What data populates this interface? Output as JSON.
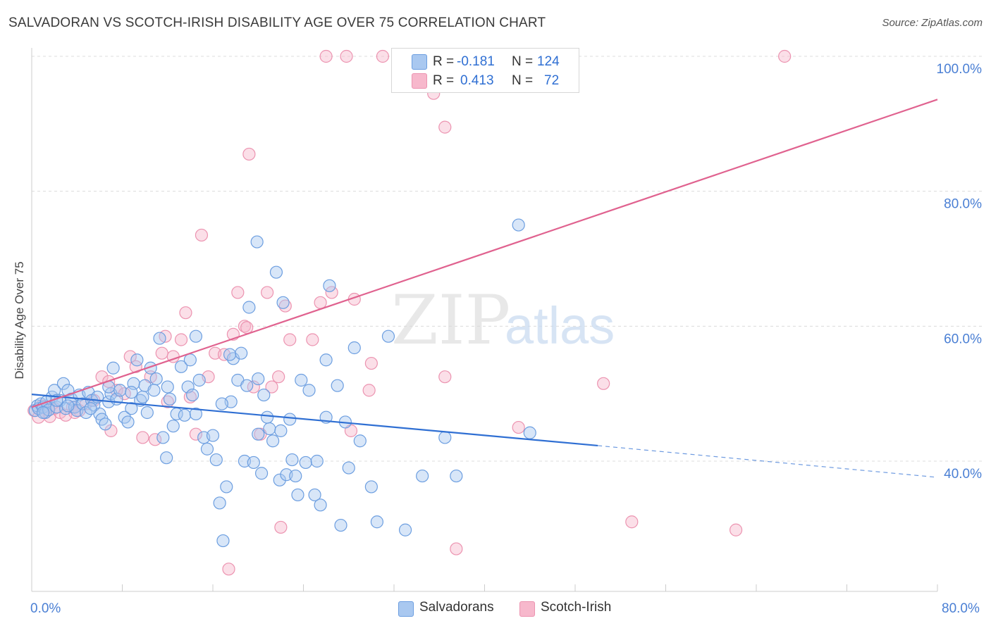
{
  "title": "SALVADORAN VS SCOTCH-IRISH DISABILITY AGE OVER 75 CORRELATION CHART",
  "source": "Source: ZipAtlas.com",
  "watermark": {
    "zip": "ZIP",
    "atlas": "atlas"
  },
  "colors": {
    "salvadoran_fill": "#a9c8f0",
    "salvadoran_stroke": "#6c9ee0",
    "salvadoran_line": "#2f6fd3",
    "scotch_fill": "#f7b8cc",
    "scotch_stroke": "#ec93b0",
    "scotch_line": "#e0628f",
    "axis_text": "#4a7fd4",
    "grid": "#dcdcdc"
  },
  "legend": {
    "rows": [
      {
        "r_label": "R =",
        "r_value": "-0.181",
        "n_label": "N =",
        "n_value": "124"
      },
      {
        "r_label": "R =",
        "r_value": "0.413",
        "n_label": "N =",
        "n_value": "72"
      }
    ]
  },
  "bottom_legend": {
    "salvadoran": "Salvadorans",
    "scotch": "Scotch-Irish"
  },
  "chart_data": {
    "type": "scatter",
    "title": "SALVADORAN VS SCOTCH-IRISH DISABILITY AGE OVER 75 CORRELATION CHART",
    "ylabel": "Disability Age Over 75",
    "xlabel": "",
    "xlim": [
      0,
      80
    ],
    "ylim": [
      22,
      103
    ],
    "x_tick_labels": [
      "0.0%",
      "80.0%"
    ],
    "y_tick_values": [
      40,
      60,
      80,
      100
    ],
    "y_tick_labels": [
      "40.0%",
      "60.0%",
      "80.0%",
      "100.0%"
    ],
    "grid": true,
    "legend_position": "top-center",
    "series": [
      {
        "name": "Salvadorans",
        "points": [
          [
            0.3,
            47.5
          ],
          [
            0.5,
            48.2
          ],
          [
            0.6,
            47.8
          ],
          [
            0.8,
            48.5
          ],
          [
            1.0,
            48.0
          ],
          [
            1.2,
            47.2
          ],
          [
            1.3,
            48.8
          ],
          [
            1.5,
            47.6
          ],
          [
            1.8,
            49.5
          ],
          [
            2.0,
            50.5
          ],
          [
            2.2,
            48.0
          ],
          [
            2.5,
            49.0
          ],
          [
            2.8,
            51.5
          ],
          [
            3.0,
            47.8
          ],
          [
            3.2,
            50.5
          ],
          [
            3.5,
            49.2
          ],
          [
            3.8,
            48.0
          ],
          [
            4.0,
            47.5
          ],
          [
            4.2,
            49.8
          ],
          [
            4.5,
            48.5
          ],
          [
            4.8,
            47.2
          ],
          [
            5.0,
            50.2
          ],
          [
            5.3,
            49.0
          ],
          [
            5.5,
            48.3
          ],
          [
            5.8,
            49.5
          ],
          [
            6.0,
            47.0
          ],
          [
            6.2,
            46.2
          ],
          [
            6.5,
            45.5
          ],
          [
            6.8,
            48.8
          ],
          [
            7.0,
            50.0
          ],
          [
            7.2,
            53.8
          ],
          [
            7.5,
            49.2
          ],
          [
            7.8,
            50.5
          ],
          [
            8.2,
            46.5
          ],
          [
            8.5,
            45.8
          ],
          [
            8.8,
            47.8
          ],
          [
            9.0,
            51.5
          ],
          [
            9.3,
            55.0
          ],
          [
            9.6,
            49.0
          ],
          [
            10.0,
            51.2
          ],
          [
            10.2,
            47.2
          ],
          [
            10.5,
            53.8
          ],
          [
            10.8,
            50.5
          ],
          [
            11.0,
            52.2
          ],
          [
            11.3,
            58.2
          ],
          [
            11.6,
            43.5
          ],
          [
            11.9,
            40.5
          ],
          [
            12.2,
            49.2
          ],
          [
            12.5,
            45.2
          ],
          [
            12.8,
            47.0
          ],
          [
            13.2,
            54.0
          ],
          [
            13.5,
            46.8
          ],
          [
            13.8,
            51.0
          ],
          [
            14.0,
            55.0
          ],
          [
            14.2,
            49.8
          ],
          [
            14.5,
            58.5
          ],
          [
            14.8,
            52.0
          ],
          [
            15.2,
            43.5
          ],
          [
            15.5,
            41.8
          ],
          [
            16.0,
            43.8
          ],
          [
            16.3,
            40.2
          ],
          [
            16.6,
            33.8
          ],
          [
            16.9,
            28.2
          ],
          [
            17.2,
            36.2
          ],
          [
            17.6,
            48.8
          ],
          [
            17.8,
            55.2
          ],
          [
            18.2,
            52.0
          ],
          [
            18.5,
            56.0
          ],
          [
            18.8,
            40.0
          ],
          [
            19.0,
            51.2
          ],
          [
            19.2,
            62.8
          ],
          [
            19.6,
            39.8
          ],
          [
            19.9,
            72.5
          ],
          [
            20.0,
            52.2
          ],
          [
            20.3,
            38.2
          ],
          [
            20.5,
            49.8
          ],
          [
            20.8,
            46.5
          ],
          [
            21.0,
            44.8
          ],
          [
            21.3,
            43.0
          ],
          [
            21.6,
            68.0
          ],
          [
            21.9,
            37.2
          ],
          [
            22.2,
            63.5
          ],
          [
            22.5,
            38.0
          ],
          [
            22.8,
            46.2
          ],
          [
            23.0,
            40.2
          ],
          [
            23.3,
            37.8
          ],
          [
            23.5,
            35.0
          ],
          [
            23.8,
            52.0
          ],
          [
            24.2,
            39.8
          ],
          [
            24.5,
            50.5
          ],
          [
            25.0,
            35.0
          ],
          [
            25.5,
            33.5
          ],
          [
            26.0,
            55.0
          ],
          [
            26.3,
            66.0
          ],
          [
            27.0,
            51.2
          ],
          [
            27.3,
            30.5
          ],
          [
            27.7,
            45.8
          ],
          [
            28.0,
            39.0
          ],
          [
            28.5,
            56.8
          ],
          [
            29.0,
            43.0
          ],
          [
            30.0,
            36.2
          ],
          [
            30.5,
            31.0
          ],
          [
            31.5,
            58.5
          ],
          [
            33.0,
            29.8
          ],
          [
            34.5,
            37.8
          ],
          [
            36.5,
            43.5
          ],
          [
            37.5,
            37.8
          ],
          [
            43.0,
            75.0
          ],
          [
            44.0,
            44.2
          ],
          [
            1.0,
            47.2
          ],
          [
            2.2,
            49.0
          ],
          [
            3.2,
            48.2
          ],
          [
            5.2,
            47.8
          ],
          [
            6.8,
            51.0
          ],
          [
            8.8,
            50.2
          ],
          [
            9.8,
            49.5
          ],
          [
            12.0,
            51.0
          ],
          [
            14.5,
            47.0
          ],
          [
            16.8,
            48.5
          ],
          [
            17.5,
            55.8
          ],
          [
            20.0,
            44.0
          ],
          [
            22.0,
            44.5
          ],
          [
            25.2,
            40.0
          ],
          [
            26.0,
            46.5
          ]
        ],
        "trend": {
          "x": [
            0,
            50
          ],
          "y": [
            49.9,
            42.3
          ],
          "dashed_to": [
            80,
            37.6
          ]
        }
      },
      {
        "name": "Scotch-Irish",
        "points": [
          [
            0.2,
            47.5
          ],
          [
            0.6,
            46.5
          ],
          [
            0.9,
            48.2
          ],
          [
            1.2,
            47.2
          ],
          [
            1.6,
            46.6
          ],
          [
            2.0,
            47.8
          ],
          [
            2.5,
            47.2
          ],
          [
            3.0,
            46.8
          ],
          [
            3.6,
            48.0
          ],
          [
            4.2,
            47.5
          ],
          [
            4.8,
            48.5
          ],
          [
            5.5,
            49.0
          ],
          [
            6.2,
            52.5
          ],
          [
            6.8,
            51.8
          ],
          [
            7.5,
            50.5
          ],
          [
            8.2,
            50.0
          ],
          [
            8.7,
            55.5
          ],
          [
            9.2,
            54.0
          ],
          [
            9.8,
            43.5
          ],
          [
            10.5,
            52.5
          ],
          [
            10.9,
            43.2
          ],
          [
            11.5,
            56.0
          ],
          [
            12.0,
            48.8
          ],
          [
            12.5,
            55.5
          ],
          [
            13.2,
            58.0
          ],
          [
            13.6,
            62.0
          ],
          [
            14.0,
            49.5
          ],
          [
            14.5,
            44.0
          ],
          [
            15.0,
            73.5
          ],
          [
            15.6,
            52.5
          ],
          [
            16.2,
            56.0
          ],
          [
            17.0,
            55.8
          ],
          [
            17.4,
            24.0
          ],
          [
            17.8,
            58.8
          ],
          [
            18.2,
            65.0
          ],
          [
            18.8,
            60.0
          ],
          [
            19.0,
            59.8
          ],
          [
            19.2,
            85.5
          ],
          [
            19.6,
            51.0
          ],
          [
            20.2,
            44.0
          ],
          [
            20.8,
            65.0
          ],
          [
            21.2,
            51.0
          ],
          [
            21.8,
            52.5
          ],
          [
            22.0,
            30.2
          ],
          [
            22.4,
            63.0
          ],
          [
            22.8,
            58.0
          ],
          [
            24.8,
            58.0
          ],
          [
            25.5,
            63.5
          ],
          [
            26.0,
            100.0
          ],
          [
            26.5,
            65.0
          ],
          [
            27.8,
            100.0
          ],
          [
            28.2,
            44.5
          ],
          [
            28.5,
            64.0
          ],
          [
            29.8,
            50.5
          ],
          [
            30.0,
            54.5
          ],
          [
            31.0,
            100.0
          ],
          [
            35.5,
            94.5
          ],
          [
            36.5,
            89.5
          ],
          [
            36.5,
            52.5
          ],
          [
            38.8,
            100.0
          ],
          [
            37.5,
            27.0
          ],
          [
            42.0,
            100.0
          ],
          [
            43.0,
            45.0
          ],
          [
            50.5,
            51.5
          ],
          [
            53.0,
            31.0
          ],
          [
            62.2,
            29.8
          ],
          [
            66.5,
            100.0
          ],
          [
            7.0,
            44.5
          ],
          [
            11.8,
            58.5
          ],
          [
            1.5,
            48.0
          ],
          [
            3.8,
            47.2
          ],
          [
            33.5,
            100.0
          ]
        ],
        "trend": {
          "x": [
            0,
            80
          ],
          "y": [
            48.0,
            93.6
          ]
        }
      }
    ]
  }
}
